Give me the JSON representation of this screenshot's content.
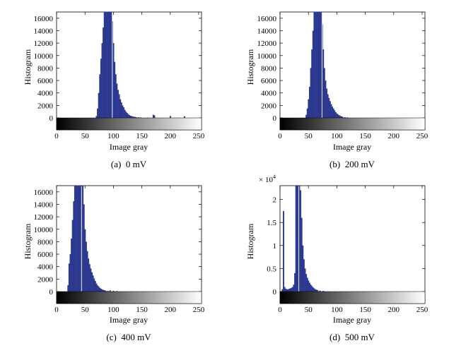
{
  "chart_data": [
    {
      "type": "bar",
      "caption": "(a)  0 mV",
      "xlabel": "Image gray",
      "ylabel": "Histogram",
      "xlim": [
        0,
        255
      ],
      "ylim": [
        0,
        17000
      ],
      "xticks": [
        "0",
        "50",
        "100",
        "150",
        "200",
        "250"
      ],
      "yticks": [
        "0",
        "2000",
        "4000",
        "6000",
        "8000",
        "10000",
        "12000",
        "14000",
        "16000"
      ],
      "y_multiplier": "",
      "bars": [
        {
          "x": 70,
          "y": 300
        },
        {
          "x": 72,
          "y": 1500
        },
        {
          "x": 74,
          "y": 4000
        },
        {
          "x": 76,
          "y": 7000
        },
        {
          "x": 78,
          "y": 9500
        },
        {
          "x": 80,
          "y": 12000
        },
        {
          "x": 82,
          "y": 14500
        },
        {
          "x": 84,
          "y": 17000
        },
        {
          "x": 86,
          "y": 17000
        },
        {
          "x": 88,
          "y": 17000
        },
        {
          "x": 90,
          "y": 17000
        },
        {
          "x": 92,
          "y": 17000
        },
        {
          "x": 94,
          "y": 17000
        },
        {
          "x": 96,
          "y": 17000
        },
        {
          "x": 98,
          "y": 15500
        },
        {
          "x": 100,
          "y": 12000
        },
        {
          "x": 102,
          "y": 9000
        },
        {
          "x": 104,
          "y": 7000
        },
        {
          "x": 106,
          "y": 5500
        },
        {
          "x": 108,
          "y": 4500
        },
        {
          "x": 110,
          "y": 3800
        },
        {
          "x": 112,
          "y": 3000
        },
        {
          "x": 114,
          "y": 2500
        },
        {
          "x": 116,
          "y": 2000
        },
        {
          "x": 118,
          "y": 1700
        },
        {
          "x": 120,
          "y": 1300
        },
        {
          "x": 122,
          "y": 1000
        },
        {
          "x": 124,
          "y": 800
        },
        {
          "x": 126,
          "y": 600
        },
        {
          "x": 128,
          "y": 450
        },
        {
          "x": 130,
          "y": 350
        },
        {
          "x": 132,
          "y": 280
        },
        {
          "x": 134,
          "y": 220
        },
        {
          "x": 136,
          "y": 180
        },
        {
          "x": 138,
          "y": 150
        },
        {
          "x": 140,
          "y": 120
        },
        {
          "x": 144,
          "y": 100
        },
        {
          "x": 148,
          "y": 80
        },
        {
          "x": 160,
          "y": 60
        },
        {
          "x": 170,
          "y": 500
        },
        {
          "x": 172,
          "y": 400
        },
        {
          "x": 200,
          "y": 300
        },
        {
          "x": 225,
          "y": 250
        }
      ],
      "vline_x": 98
    },
    {
      "type": "bar",
      "caption": "(b)  200 mV",
      "xlabel": "Image gray",
      "ylabel": "Histogram",
      "xlim": [
        0,
        255
      ],
      "ylim": [
        0,
        17000
      ],
      "xticks": [
        "0",
        "50",
        "100",
        "150",
        "200",
        "250"
      ],
      "yticks": [
        "0",
        "2000",
        "4000",
        "6000",
        "8000",
        "10000",
        "12000",
        "14000",
        "16000"
      ],
      "y_multiplier": "",
      "bars": [
        {
          "x": 46,
          "y": 500
        },
        {
          "x": 48,
          "y": 1500
        },
        {
          "x": 50,
          "y": 3000
        },
        {
          "x": 52,
          "y": 5000
        },
        {
          "x": 54,
          "y": 8000
        },
        {
          "x": 56,
          "y": 11000
        },
        {
          "x": 58,
          "y": 14000
        },
        {
          "x": 60,
          "y": 17000
        },
        {
          "x": 62,
          "y": 17000
        },
        {
          "x": 64,
          "y": 17000
        },
        {
          "x": 66,
          "y": 17000
        },
        {
          "x": 68,
          "y": 17000
        },
        {
          "x": 70,
          "y": 17000
        },
        {
          "x": 72,
          "y": 17000
        },
        {
          "x": 74,
          "y": 15000
        },
        {
          "x": 76,
          "y": 11000
        },
        {
          "x": 78,
          "y": 8000
        },
        {
          "x": 80,
          "y": 6000
        },
        {
          "x": 82,
          "y": 4700
        },
        {
          "x": 84,
          "y": 3800
        },
        {
          "x": 86,
          "y": 3200
        },
        {
          "x": 88,
          "y": 2700
        },
        {
          "x": 90,
          "y": 2200
        },
        {
          "x": 92,
          "y": 1800
        },
        {
          "x": 94,
          "y": 1500
        },
        {
          "x": 96,
          "y": 1200
        },
        {
          "x": 98,
          "y": 900
        },
        {
          "x": 100,
          "y": 700
        },
        {
          "x": 102,
          "y": 550
        },
        {
          "x": 104,
          "y": 420
        },
        {
          "x": 106,
          "y": 320
        },
        {
          "x": 108,
          "y": 250
        },
        {
          "x": 110,
          "y": 180
        },
        {
          "x": 114,
          "y": 120
        },
        {
          "x": 118,
          "y": 80
        }
      ],
      "vline_x": 74
    },
    {
      "type": "bar",
      "caption": "(c)  400 mV",
      "xlabel": "Image gray",
      "ylabel": "Histogram",
      "xlim": [
        0,
        255
      ],
      "ylim": [
        0,
        17000
      ],
      "xticks": [
        "0",
        "50",
        "100",
        "150",
        "200",
        "250"
      ],
      "yticks": [
        "0",
        "2000",
        "4000",
        "6000",
        "8000",
        "10000",
        "12000",
        "14000",
        "16000"
      ],
      "y_multiplier": "",
      "bars": [
        {
          "x": 20,
          "y": 1000
        },
        {
          "x": 22,
          "y": 4500
        },
        {
          "x": 24,
          "y": 6000
        },
        {
          "x": 26,
          "y": 8500
        },
        {
          "x": 28,
          "y": 11500
        },
        {
          "x": 30,
          "y": 14500
        },
        {
          "x": 32,
          "y": 17000
        },
        {
          "x": 34,
          "y": 17000
        },
        {
          "x": 36,
          "y": 17000
        },
        {
          "x": 38,
          "y": 17000
        },
        {
          "x": 40,
          "y": 17000
        },
        {
          "x": 42,
          "y": 17000
        },
        {
          "x": 44,
          "y": 17000
        },
        {
          "x": 46,
          "y": 17000
        },
        {
          "x": 48,
          "y": 14000
        },
        {
          "x": 50,
          "y": 10000
        },
        {
          "x": 52,
          "y": 8000
        },
        {
          "x": 54,
          "y": 6500
        },
        {
          "x": 56,
          "y": 5300
        },
        {
          "x": 58,
          "y": 4400
        },
        {
          "x": 60,
          "y": 3700
        },
        {
          "x": 62,
          "y": 3100
        },
        {
          "x": 64,
          "y": 2600
        },
        {
          "x": 66,
          "y": 2100
        },
        {
          "x": 68,
          "y": 1700
        },
        {
          "x": 70,
          "y": 1300
        },
        {
          "x": 72,
          "y": 1000
        },
        {
          "x": 74,
          "y": 800
        },
        {
          "x": 76,
          "y": 600
        },
        {
          "x": 78,
          "y": 450
        },
        {
          "x": 80,
          "y": 350
        },
        {
          "x": 82,
          "y": 260
        },
        {
          "x": 84,
          "y": 200
        },
        {
          "x": 86,
          "y": 150
        },
        {
          "x": 90,
          "y": 120
        },
        {
          "x": 94,
          "y": 200
        },
        {
          "x": 100,
          "y": 120
        },
        {
          "x": 106,
          "y": 80
        }
      ],
      "vline_x": 44
    },
    {
      "type": "bar",
      "caption": "(d)  500 mV",
      "xlabel": "Image gray",
      "ylabel": "Histogram",
      "xlim": [
        0,
        255
      ],
      "ylim": [
        0,
        2.3
      ],
      "xticks": [
        "0",
        "50",
        "100",
        "150",
        "200",
        "250"
      ],
      "yticks": [
        "0",
        "0.5",
        "1",
        "1.5",
        "2"
      ],
      "y_multiplier": "× 10",
      "y_multiplier_exp": "4",
      "bars": [
        {
          "x": 4,
          "y": 0.05
        },
        {
          "x": 6,
          "y": 1.75
        },
        {
          "x": 8,
          "y": 0.1
        },
        {
          "x": 10,
          "y": 0.06
        },
        {
          "x": 12,
          "y": 0.05
        },
        {
          "x": 14,
          "y": 0.05
        },
        {
          "x": 16,
          "y": 0.06
        },
        {
          "x": 18,
          "y": 0.07
        },
        {
          "x": 20,
          "y": 0.08
        },
        {
          "x": 22,
          "y": 0.1
        },
        {
          "x": 24,
          "y": 0.15
        },
        {
          "x": 26,
          "y": 0.4
        },
        {
          "x": 28,
          "y": 2.3
        },
        {
          "x": 30,
          "y": 2.3
        },
        {
          "x": 32,
          "y": 2.3
        },
        {
          "x": 34,
          "y": 2.3
        },
        {
          "x": 36,
          "y": 2.2
        },
        {
          "x": 38,
          "y": 1.6
        },
        {
          "x": 40,
          "y": 1.0
        },
        {
          "x": 42,
          "y": 0.7
        },
        {
          "x": 44,
          "y": 0.5
        },
        {
          "x": 46,
          "y": 0.38
        },
        {
          "x": 48,
          "y": 0.3
        },
        {
          "x": 50,
          "y": 0.24
        },
        {
          "x": 52,
          "y": 0.19
        },
        {
          "x": 54,
          "y": 0.15
        },
        {
          "x": 56,
          "y": 0.12
        },
        {
          "x": 58,
          "y": 0.09
        },
        {
          "x": 60,
          "y": 0.07
        },
        {
          "x": 62,
          "y": 0.05
        },
        {
          "x": 64,
          "y": 0.04
        },
        {
          "x": 66,
          "y": 0.03
        },
        {
          "x": 70,
          "y": 0.02
        },
        {
          "x": 76,
          "y": 0.015
        }
      ],
      "vline_x": 33
    }
  ],
  "colors": {
    "bar": "#2b3990",
    "highlight": "#d8dcf0",
    "axis": "#000000",
    "gradient_dark": "#000000",
    "gradient_light": "#ffffff"
  }
}
